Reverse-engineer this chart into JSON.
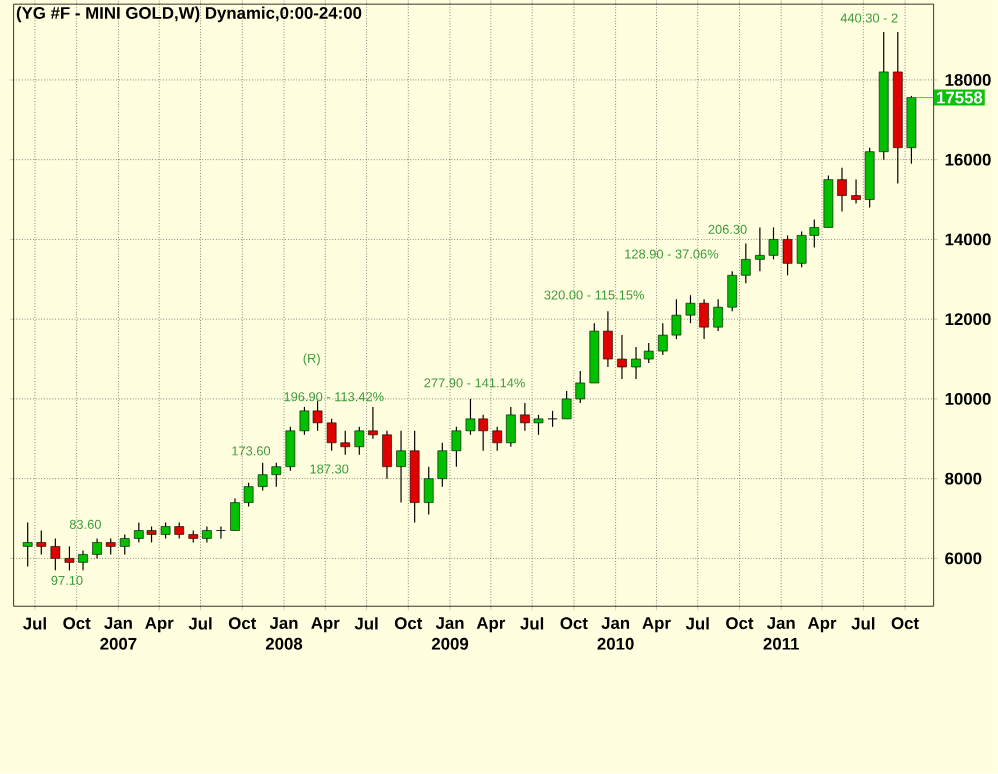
{
  "chart_data": {
    "type": "candlestick",
    "title": "(YG #F - MINI GOLD,W) Dynamic,0:00-24:00",
    "x": [
      "2006-06-15",
      "2006-07-15",
      "2006-08-15",
      "2006-09-15",
      "2006-10-15",
      "2006-11-15",
      "2006-12-15",
      "2007-01-15",
      "2007-02-15",
      "2007-03-15",
      "2007-04-15",
      "2007-05-15",
      "2007-06-15",
      "2007-07-15",
      "2007-08-15",
      "2007-09-15",
      "2007-10-15",
      "2007-11-15",
      "2007-12-15",
      "2008-01-15",
      "2008-02-15",
      "2008-03-15",
      "2008-04-15",
      "2008-05-15",
      "2008-06-15",
      "2008-07-15",
      "2008-08-15",
      "2008-09-15",
      "2008-10-15",
      "2008-11-15",
      "2008-12-15",
      "2009-01-15",
      "2009-02-15",
      "2009-03-15",
      "2009-04-15",
      "2009-05-15",
      "2009-06-15",
      "2009-07-15",
      "2009-08-15",
      "2009-09-15",
      "2009-10-15",
      "2009-11-15",
      "2009-12-15",
      "2010-01-15",
      "2010-02-15",
      "2010-03-15",
      "2010-04-15",
      "2010-05-15",
      "2010-06-15",
      "2010-07-15",
      "2010-08-15",
      "2010-09-15",
      "2010-10-15",
      "2010-11-15",
      "2010-12-15",
      "2011-01-15",
      "2011-02-15",
      "2011-03-15",
      "2011-04-15",
      "2011-05-15",
      "2011-06-15",
      "2011-07-15",
      "2011-08-15",
      "2011-09-15",
      "2011-10-15"
    ],
    "ohlc": [
      [
        6300,
        6900,
        5800,
        6400
      ],
      [
        6400,
        6700,
        6100,
        6300
      ],
      [
        6300,
        6500,
        5700,
        6000
      ],
      [
        6000,
        6300,
        5700,
        5900
      ],
      [
        5900,
        6200,
        5700,
        6100
      ],
      [
        6100,
        6500,
        6000,
        6400
      ],
      [
        6400,
        6500,
        6100,
        6300
      ],
      [
        6300,
        6600,
        6100,
        6500
      ],
      [
        6500,
        6900,
        6400,
        6700
      ],
      [
        6700,
        6800,
        6400,
        6600
      ],
      [
        6600,
        6900,
        6500,
        6800
      ],
      [
        6800,
        6900,
        6500,
        6600
      ],
      [
        6600,
        6700,
        6400,
        6500
      ],
      [
        6500,
        6800,
        6400,
        6700
      ],
      [
        6700,
        6800,
        6500,
        6700
      ],
      [
        6700,
        7500,
        6700,
        7400
      ],
      [
        7400,
        7900,
        7300,
        7800
      ],
      [
        7800,
        8400,
        7700,
        8100
      ],
      [
        8100,
        8400,
        7800,
        8300
      ],
      [
        8300,
        9300,
        8200,
        9200
      ],
      [
        9200,
        9800,
        9100,
        9700
      ],
      [
        9700,
        9950,
        9200,
        9400
      ],
      [
        9400,
        9500,
        8700,
        8900
      ],
      [
        8900,
        9200,
        8600,
        8800
      ],
      [
        8800,
        9300,
        8600,
        9200
      ],
      [
        9200,
        9800,
        9000,
        9100
      ],
      [
        9100,
        9200,
        8000,
        8300
      ],
      [
        8300,
        9200,
        7400,
        8700
      ],
      [
        8700,
        9200,
        6900,
        7400
      ],
      [
        7400,
        8300,
        7100,
        8000
      ],
      [
        8000,
        8900,
        7800,
        8700
      ],
      [
        8700,
        9300,
        8300,
        9200
      ],
      [
        9200,
        10000,
        9100,
        9500
      ],
      [
        9500,
        9600,
        8700,
        9200
      ],
      [
        9200,
        9300,
        8700,
        8900
      ],
      [
        8900,
        9800,
        8800,
        9600
      ],
      [
        9600,
        9900,
        9200,
        9400
      ],
      [
        9400,
        9600,
        9100,
        9500
      ],
      [
        9500,
        9700,
        9300,
        9500
      ],
      [
        9500,
        10200,
        9500,
        10000
      ],
      [
        10000,
        10700,
        9900,
        10400
      ],
      [
        10400,
        11900,
        10400,
        11700
      ],
      [
        11700,
        12200,
        10800,
        11000
      ],
      [
        11000,
        11600,
        10500,
        10800
      ],
      [
        10800,
        11300,
        10500,
        11000
      ],
      [
        11000,
        11400,
        10900,
        11200
      ],
      [
        11200,
        11900,
        11100,
        11600
      ],
      [
        11600,
        12500,
        11500,
        12100
      ],
      [
        12100,
        12600,
        11900,
        12400
      ],
      [
        12400,
        12500,
        11500,
        11800
      ],
      [
        11800,
        12500,
        11700,
        12300
      ],
      [
        12300,
        13200,
        12200,
        13100
      ],
      [
        13100,
        13900,
        12900,
        13500
      ],
      [
        13500,
        14300,
        13200,
        13600
      ],
      [
        13600,
        14300,
        13500,
        14000
      ],
      [
        14000,
        14100,
        13100,
        13400
      ],
      [
        13400,
        14200,
        13300,
        14100
      ],
      [
        14100,
        14500,
        13800,
        14300
      ],
      [
        14300,
        15600,
        14300,
        15500
      ],
      [
        15500,
        15800,
        14700,
        15100
      ],
      [
        15100,
        15500,
        14900,
        15000
      ],
      [
        15000,
        16300,
        14800,
        16200
      ],
      [
        16200,
        19200,
        16000,
        18200
      ],
      [
        18200,
        19200,
        15400,
        16300
      ],
      [
        16300,
        17600,
        15900,
        17558
      ]
    ],
    "xlim": [
      "2006-05-15",
      "2011-12-03"
    ],
    "ylim": [
      4800,
      19900
    ],
    "yticks": [
      6000,
      8000,
      10000,
      12000,
      14000,
      16000,
      18000
    ],
    "xticks": [
      {
        "value": "2006-07-01",
        "label": "Jul"
      },
      {
        "value": "2006-10-01",
        "label": "Oct"
      },
      {
        "value": "2007-01-01",
        "label": "Jan 2007"
      },
      {
        "value": "2007-04-01",
        "label": "Apr"
      },
      {
        "value": "2007-07-01",
        "label": "Jul"
      },
      {
        "value": "2007-10-01",
        "label": "Oct"
      },
      {
        "value": "2008-01-01",
        "label": "Jan 2008"
      },
      {
        "value": "2008-04-01",
        "label": "Apr"
      },
      {
        "value": "2008-07-01",
        "label": "Jul"
      },
      {
        "value": "2008-10-01",
        "label": "Oct"
      },
      {
        "value": "2009-01-01",
        "label": "Jan 2009"
      },
      {
        "value": "2009-04-01",
        "label": "Apr"
      },
      {
        "value": "2009-07-01",
        "label": "Jul"
      },
      {
        "value": "2009-10-01",
        "label": "Oct"
      },
      {
        "value": "2010-01-01",
        "label": "Jan 2010"
      },
      {
        "value": "2010-04-01",
        "label": "Apr"
      },
      {
        "value": "2010-07-01",
        "label": "Jul"
      },
      {
        "value": "2010-10-01",
        "label": "Oct"
      },
      {
        "value": "2011-01-01",
        "label": "Jan 2011"
      },
      {
        "value": "2011-04-01",
        "label": "Apr"
      },
      {
        "value": "2011-07-01",
        "label": "Jul"
      },
      {
        "value": "2011-10-01",
        "label": "Oct"
      }
    ],
    "grid": true,
    "annotations": [
      "97.10",
      "83.60",
      "173.60",
      "187.30",
      "196.90 - 113.42%",
      "(R)",
      "277.90 - 141.14%",
      "320.00 - 115.15%",
      "128.90 - 37.06%",
      "206.30",
      "440.30 - 2",
      {
        "text": "17558",
        "x": "2011-10-15",
        "y": 17558
      }
    ]
  }
}
